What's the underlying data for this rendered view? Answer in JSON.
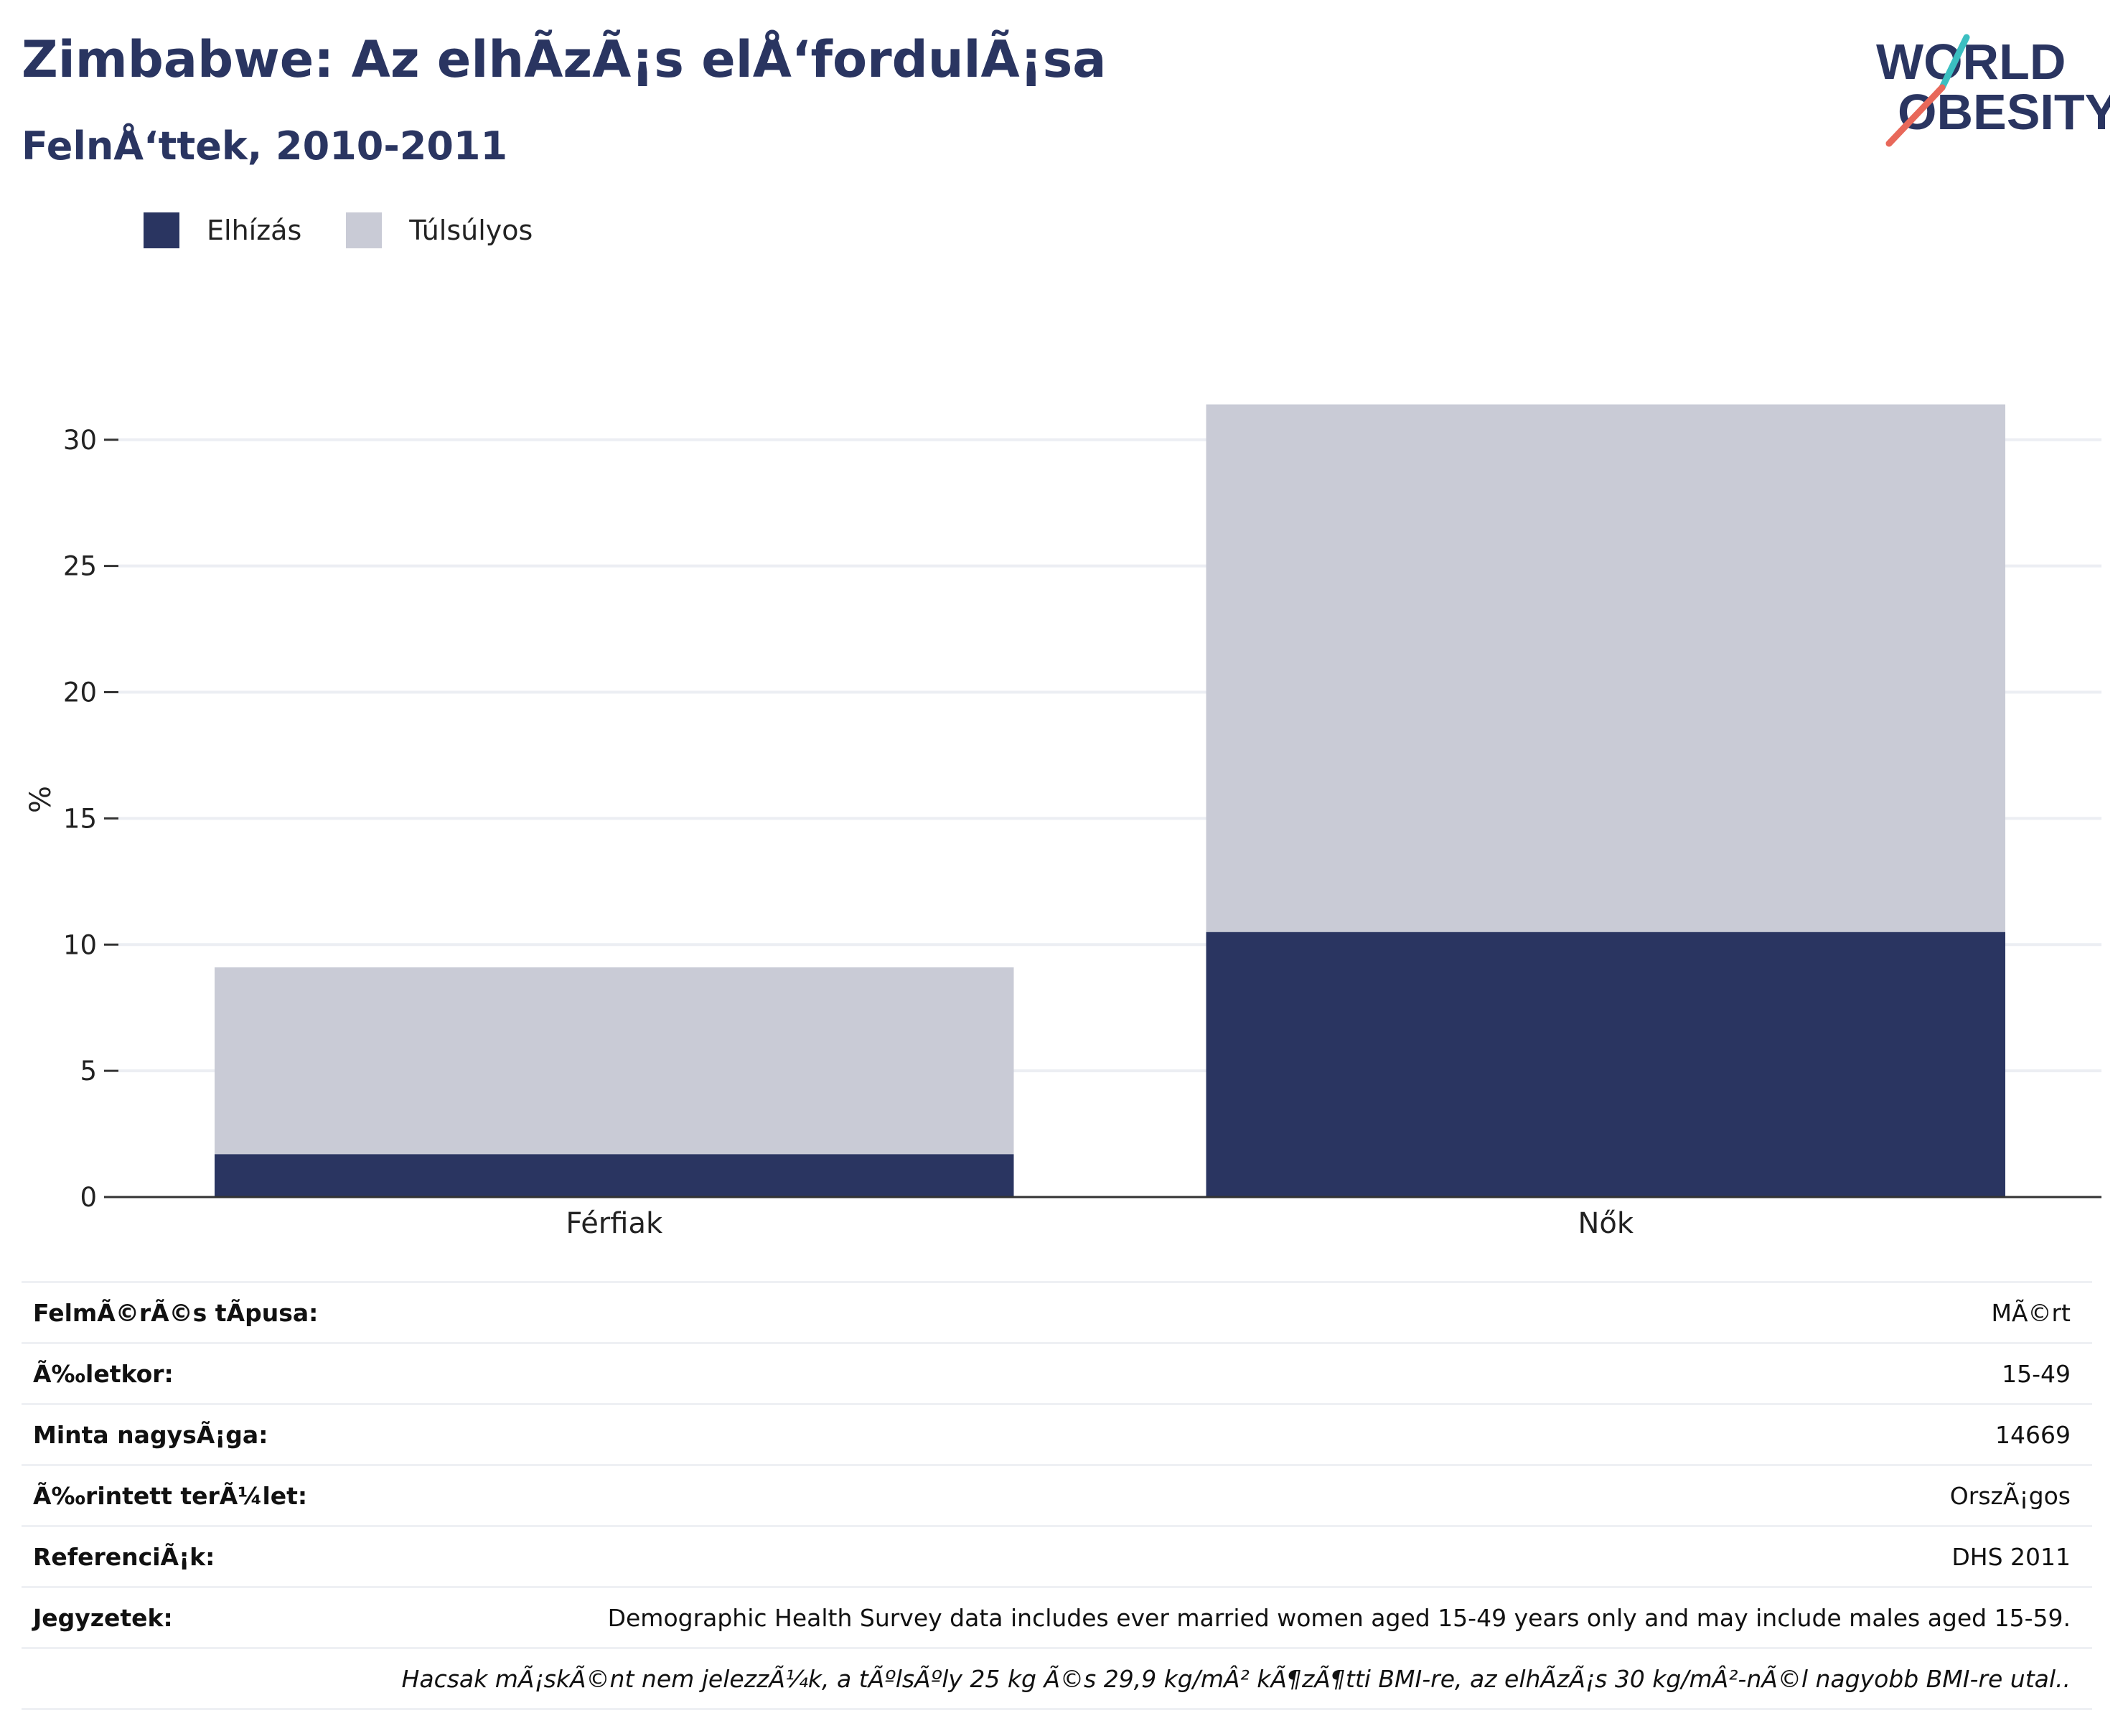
{
  "header": {
    "title": "Zimbabwe: Az elhÃzÃ¡s elÅ‘fordulÃ¡sa",
    "subtitle": "FelnÅ‘ttek, 2010-2011",
    "logo": {
      "line1": "WORLD",
      "line2": "OBESITY",
      "colors": {
        "text": "#2a3561",
        "slash_top": "#3bbfc1",
        "slash_bottom": "#e8685a"
      }
    }
  },
  "legend": {
    "items": [
      {
        "label": "Elhízás",
        "color": "#2a3561"
      },
      {
        "label": "Túlsúlyos",
        "color": "#c9cbd6"
      }
    ]
  },
  "chart_data": {
    "type": "bar",
    "stacked": true,
    "categories": [
      "Férfiak",
      "Nők"
    ],
    "series": [
      {
        "name": "Elhízás",
        "color": "#2a3561",
        "values": [
          1.7,
          10.5
        ]
      },
      {
        "name": "Túlsúlyos",
        "color": "#c9cbd6",
        "values": [
          7.4,
          20.9
        ]
      }
    ],
    "ylabel": "%",
    "xlabel": "",
    "ylim": [
      0,
      31.5
    ],
    "yticks": [
      0,
      5,
      10,
      15,
      20,
      25,
      30
    ],
    "grid": true,
    "legend_position": "top-left"
  },
  "info": {
    "rows": [
      {
        "label": "FelmÃ©rÃ©s tÃpusa:",
        "value": "MÃ©rt"
      },
      {
        "label": "Ã‰letkor:",
        "value": "15-49"
      },
      {
        "label": "Minta nagysÃ¡ga:",
        "value": "14669"
      },
      {
        "label": "Ã‰rintett terÃ¼let:",
        "value": "OrszÃ¡gos"
      },
      {
        "label": "ReferenciÃ¡k:",
        "value": "DHS 2011"
      },
      {
        "label": "Jegyzetek:",
        "value": "Demographic Health Survey data includes ever married women aged 15-49 years only and may include males aged 15-59."
      }
    ],
    "footnote": "Hacsak mÃ¡skÃ©nt nem jelezzÃ¼k, a tÃºlsÃºly 25 kg Ã©s 29,9 kg/mÂ² kÃ¶zÃ¶tti BMI-re, az elhÃzÃ¡s 30 kg/mÂ²-nÃ©l nagyobb BMI-re utal.."
  }
}
